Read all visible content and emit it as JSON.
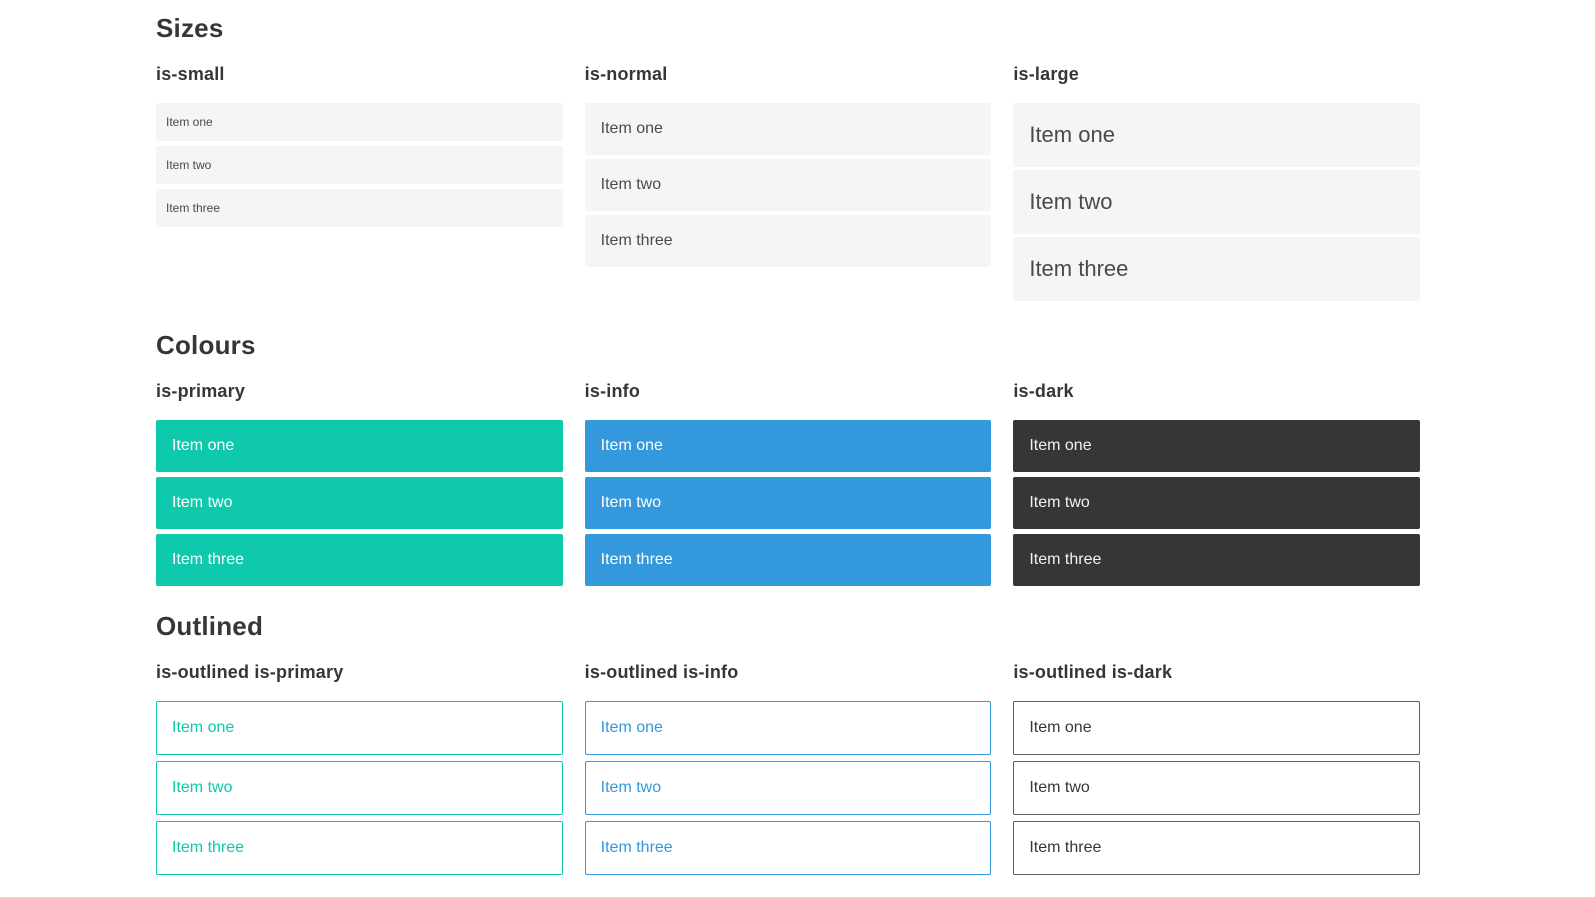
{
  "colors": {
    "primary": "#0ec9ab",
    "info": "#3499dc",
    "dark": "#363636",
    "item_bg": "#f5f5f5",
    "item_text": "#4a4a4a",
    "heading_text": "#363636",
    "on_color_text": "#ffffff",
    "outlined_dark_border": "#5f5f5f"
  },
  "sections": [
    {
      "title": "Sizes",
      "groups": [
        {
          "label": "is-small",
          "variant": "size-small",
          "items": [
            "Item one",
            "Item two",
            "Item three"
          ]
        },
        {
          "label": "is-normal",
          "variant": "size-normal",
          "items": [
            "Item one",
            "Item two",
            "Item three"
          ]
        },
        {
          "label": "is-large",
          "variant": "size-large",
          "items": [
            "Item one",
            "Item two",
            "Item three"
          ]
        }
      ]
    },
    {
      "title": "Colours",
      "groups": [
        {
          "label": "is-primary",
          "variant": "color-primary",
          "items": [
            "Item one",
            "Item two",
            "Item three"
          ]
        },
        {
          "label": "is-info",
          "variant": "color-info",
          "items": [
            "Item one",
            "Item two",
            "Item three"
          ]
        },
        {
          "label": "is-dark",
          "variant": "color-dark",
          "items": [
            "Item one",
            "Item two",
            "Item three"
          ]
        }
      ]
    },
    {
      "title": "Outlined",
      "groups": [
        {
          "label": "is-outlined is-primary",
          "variant": "outlined-primary",
          "items": [
            "Item one",
            "Item two",
            "Item three"
          ]
        },
        {
          "label": "is-outlined is-info",
          "variant": "outlined-info",
          "items": [
            "Item one",
            "Item two",
            "Item three"
          ]
        },
        {
          "label": "is-outlined is-dark",
          "variant": "outlined-dark",
          "items": [
            "Item one",
            "Item two",
            "Item three"
          ]
        }
      ]
    }
  ]
}
